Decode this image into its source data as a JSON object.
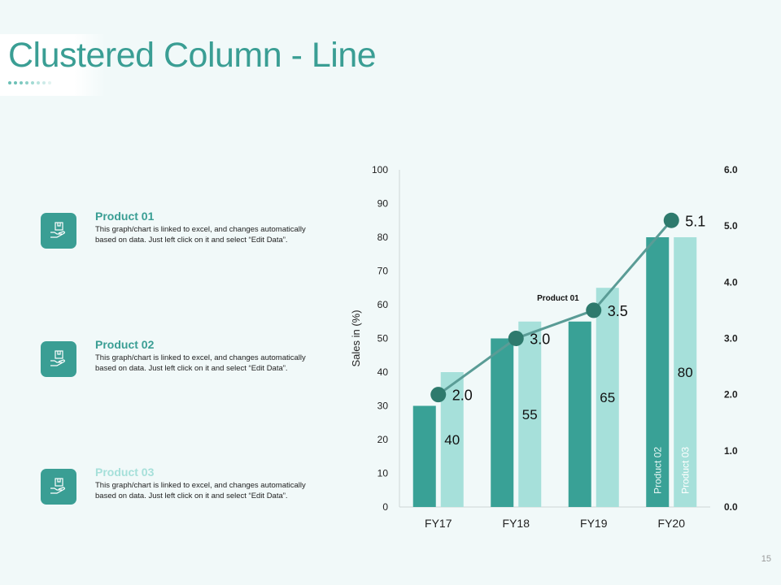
{
  "slide": {
    "title": "Clustered Column - Line",
    "page_number": "15"
  },
  "colors": {
    "accent": "#3a9e94",
    "dark_bar": "#39a196",
    "light_bar": "#a6e0da",
    "line": "#5a9c96",
    "marker": "#2e7a6d",
    "title_p1": "#3a9e94",
    "title_p2": "#3a9e94",
    "title_p3": "#a6e0da"
  },
  "products": [
    {
      "title": "Product 01",
      "desc": "This graph/chart is linked to excel, and changes automatically based on data. Just left click on it and select “Edit Data”.",
      "icon": "hand-box-icon"
    },
    {
      "title": "Product 02",
      "desc": "This graph/chart is linked to excel, and changes automatically based on data. Just left click on it and select “Edit Data”.",
      "icon": "hand-box-icon"
    },
    {
      "title": "Product 03",
      "desc": "This graph/chart is linked to excel, and changes automatically based on data. Just left click on it and select “Edit Data”.",
      "icon": "hand-box-icon"
    }
  ],
  "chart_data": {
    "type": "bar",
    "categories": [
      "FY17",
      "FY18",
      "FY19",
      "FY20"
    ],
    "series": [
      {
        "name": "Product 02",
        "type": "bar",
        "values": [
          30,
          50,
          55,
          80
        ]
      },
      {
        "name": "Product 03",
        "type": "bar",
        "values": [
          40,
          55,
          65,
          80
        ],
        "data_labels": [
          "40",
          "55",
          "65",
          "80"
        ]
      },
      {
        "name": "Product 01",
        "type": "line",
        "axis": "secondary",
        "values": [
          2.0,
          3.0,
          3.5,
          5.1
        ],
        "data_labels": [
          "2.0",
          "3.0",
          "3.5",
          "5.1"
        ]
      }
    ],
    "ylabel": "Sales in (%)",
    "ylim": [
      0,
      100
    ],
    "yticks": [
      "0",
      "10",
      "20",
      "30",
      "40",
      "50",
      "60",
      "70",
      "80",
      "90",
      "100"
    ],
    "y2lim": [
      0,
      6
    ],
    "y2ticks": [
      "0.0",
      "1.0",
      "2.0",
      "3.0",
      "4.0",
      "5.0",
      "6.0"
    ],
    "grid": false
  }
}
